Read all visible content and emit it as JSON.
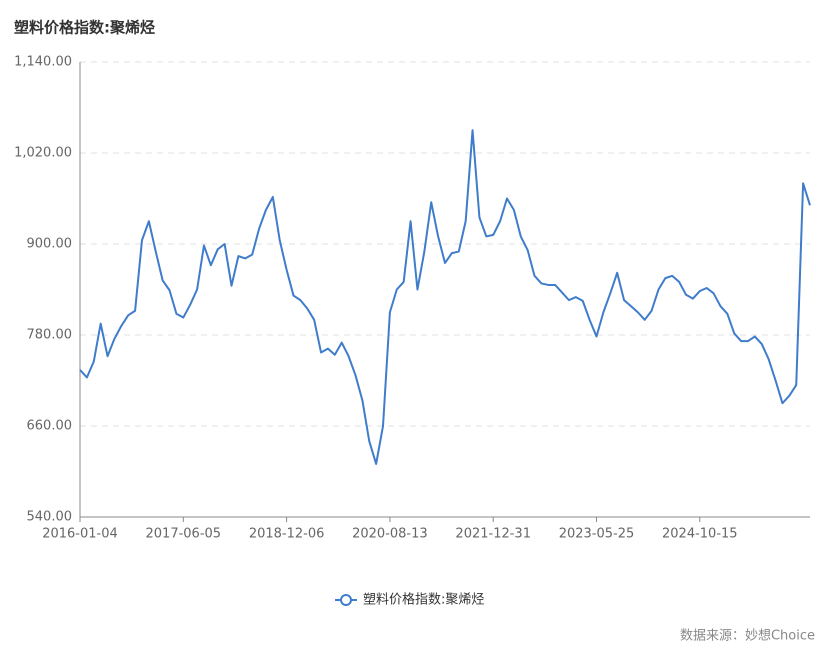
{
  "chart_data": {
    "type": "line",
    "title": "塑料价格指数:聚烯烃",
    "source": "数据来源：妙想Choice",
    "categories": [
      "2016-01-04",
      null,
      null,
      null,
      null,
      null,
      null,
      null,
      null,
      null,
      null,
      null,
      null,
      null,
      null,
      "2017-06-05",
      null,
      null,
      null,
      null,
      null,
      null,
      null,
      null,
      null,
      null,
      null,
      null,
      null,
      null,
      "2018-12-06",
      null,
      null,
      null,
      null,
      null,
      null,
      null,
      null,
      null,
      null,
      null,
      null,
      null,
      null,
      "2020-08-13",
      null,
      null,
      null,
      null,
      null,
      null,
      null,
      null,
      null,
      null,
      null,
      null,
      null,
      null,
      "2021-12-31",
      null,
      null,
      null,
      null,
      null,
      null,
      null,
      null,
      null,
      null,
      null,
      null,
      null,
      null,
      "2023-05-25",
      null,
      null,
      null,
      null,
      null,
      null,
      null,
      null,
      null,
      null,
      null,
      null,
      null,
      null,
      "2024-10-15",
      null,
      null,
      null,
      null,
      null,
      null,
      null,
      null,
      null,
      null,
      null,
      null,
      null,
      null,
      null,
      null
    ],
    "series": [
      {
        "name": "塑料价格指数:聚烯烃",
        "color": "#3f7ccb",
        "values": [
          734,
          724,
          745,
          795,
          752,
          775,
          792,
          806,
          812,
          905,
          930,
          890,
          852,
          839,
          808,
          803,
          820,
          840,
          898,
          872,
          893,
          900,
          845,
          884,
          881,
          886,
          920,
          945,
          962,
          905,
          866,
          832,
          826,
          815,
          800,
          757,
          762,
          754,
          770,
          752,
          727,
          694,
          640,
          610,
          660,
          810,
          840,
          850,
          930,
          840,
          890,
          955,
          910,
          875,
          888,
          890,
          930,
          1050,
          935,
          910,
          912,
          930,
          960,
          945,
          910,
          892,
          858,
          848,
          846,
          846,
          836,
          826,
          830,
          825,
          800,
          778,
          810,
          835,
          862,
          826,
          818,
          810,
          800,
          812,
          840,
          855,
          858,
          850,
          833,
          828,
          838,
          842,
          835,
          818,
          808,
          782,
          772,
          772,
          778,
          768,
          748,
          720,
          690,
          700,
          714,
          980,
          951
        ]
      }
    ],
    "ylim": [
      540,
      1140
    ],
    "yticks": [
      {
        "value": 540,
        "label": "540.00"
      },
      {
        "value": 660,
        "label": "660.00"
      },
      {
        "value": 780,
        "label": "780.00"
      },
      {
        "value": 900,
        "label": "900.00"
      },
      {
        "value": 1020,
        "label": "1,020.00"
      },
      {
        "value": 1140,
        "label": "1,140.00"
      }
    ],
    "grid": true
  }
}
